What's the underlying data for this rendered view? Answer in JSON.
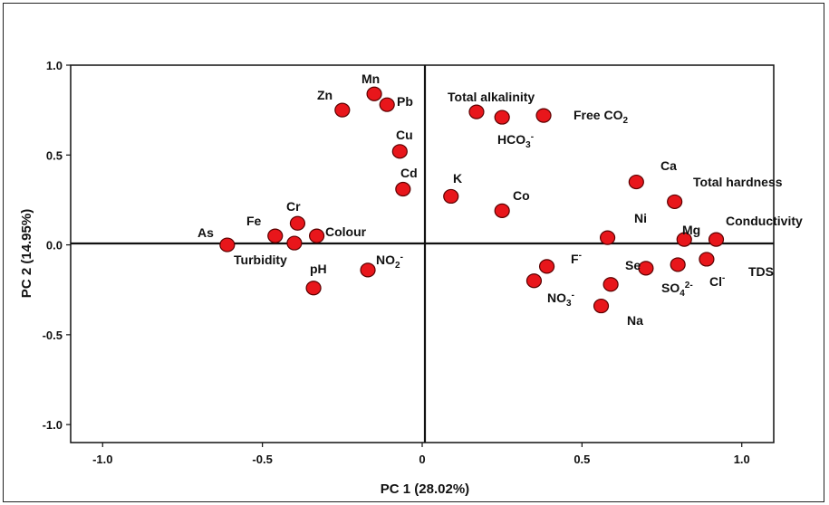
{
  "chart_data": {
    "type": "scatter",
    "title": "",
    "xlabel": "PC 1 (28.02%)",
    "ylabel": "PC 2 (14.95%)",
    "xlim": [
      -1.1,
      1.1
    ],
    "ylim": [
      -1.1,
      1.0
    ],
    "xticks": [
      -1.0,
      -0.5,
      0,
      0.5,
      1.0
    ],
    "xtick_labels": [
      "-1.0",
      "-0.5",
      "0",
      "0.5",
      "1.0"
    ],
    "yticks": [
      1.0,
      0.5,
      0.0,
      -0.5,
      -1.0
    ],
    "ytick_labels": [
      "1.0",
      "0.5",
      "0.0",
      "-0.5",
      "-1.0"
    ],
    "grid": false,
    "marker_color": "#e8161b",
    "points": [
      {
        "label": "As",
        "x": -0.61,
        "y": 0.0
      },
      {
        "label": "Fe",
        "x": -0.46,
        "y": 0.05
      },
      {
        "label": "Cr",
        "x": -0.39,
        "y": 0.12
      },
      {
        "label": "Turbidity",
        "x": -0.4,
        "y": 0.01
      },
      {
        "label": "Colour",
        "x": -0.33,
        "y": 0.05
      },
      {
        "label": "pH",
        "x": -0.34,
        "y": -0.24
      },
      {
        "label": "NO2-",
        "x": -0.17,
        "y": -0.14
      },
      {
        "label": "Zn",
        "x": -0.25,
        "y": 0.75
      },
      {
        "label": "Mn",
        "x": -0.15,
        "y": 0.84
      },
      {
        "label": "Pb",
        "x": -0.11,
        "y": 0.78
      },
      {
        "label": "Cu",
        "x": -0.07,
        "y": 0.52
      },
      {
        "label": "Cd",
        "x": -0.06,
        "y": 0.31
      },
      {
        "label": "K",
        "x": 0.09,
        "y": 0.27
      },
      {
        "label": "Total alkalinity",
        "x": 0.17,
        "y": 0.74
      },
      {
        "label": "HCO3-",
        "x": 0.25,
        "y": 0.71
      },
      {
        "label": "Free CO2",
        "x": 0.38,
        "y": 0.72
      },
      {
        "label": "Co",
        "x": 0.25,
        "y": 0.19
      },
      {
        "label": "Ca",
        "x": 0.67,
        "y": 0.35
      },
      {
        "label": "Total hardness",
        "x": 0.79,
        "y": 0.24
      },
      {
        "label": "Ni",
        "x": 0.58,
        "y": 0.04
      },
      {
        "label": "Mg",
        "x": 0.82,
        "y": 0.03
      },
      {
        "label": "Conductivity",
        "x": 0.92,
        "y": 0.03
      },
      {
        "label": "F-",
        "x": 0.39,
        "y": -0.12
      },
      {
        "label": "NO3-",
        "x": 0.35,
        "y": -0.2
      },
      {
        "label": "Se",
        "x": 0.59,
        "y": -0.22
      },
      {
        "label": "Na",
        "x": 0.56,
        "y": -0.34
      },
      {
        "label": "SO42-",
        "x": 0.7,
        "y": -0.13
      },
      {
        "label": "Cl-",
        "x": 0.8,
        "y": -0.11
      },
      {
        "label": "TDS",
        "x": 0.89,
        "y": -0.08
      }
    ]
  }
}
